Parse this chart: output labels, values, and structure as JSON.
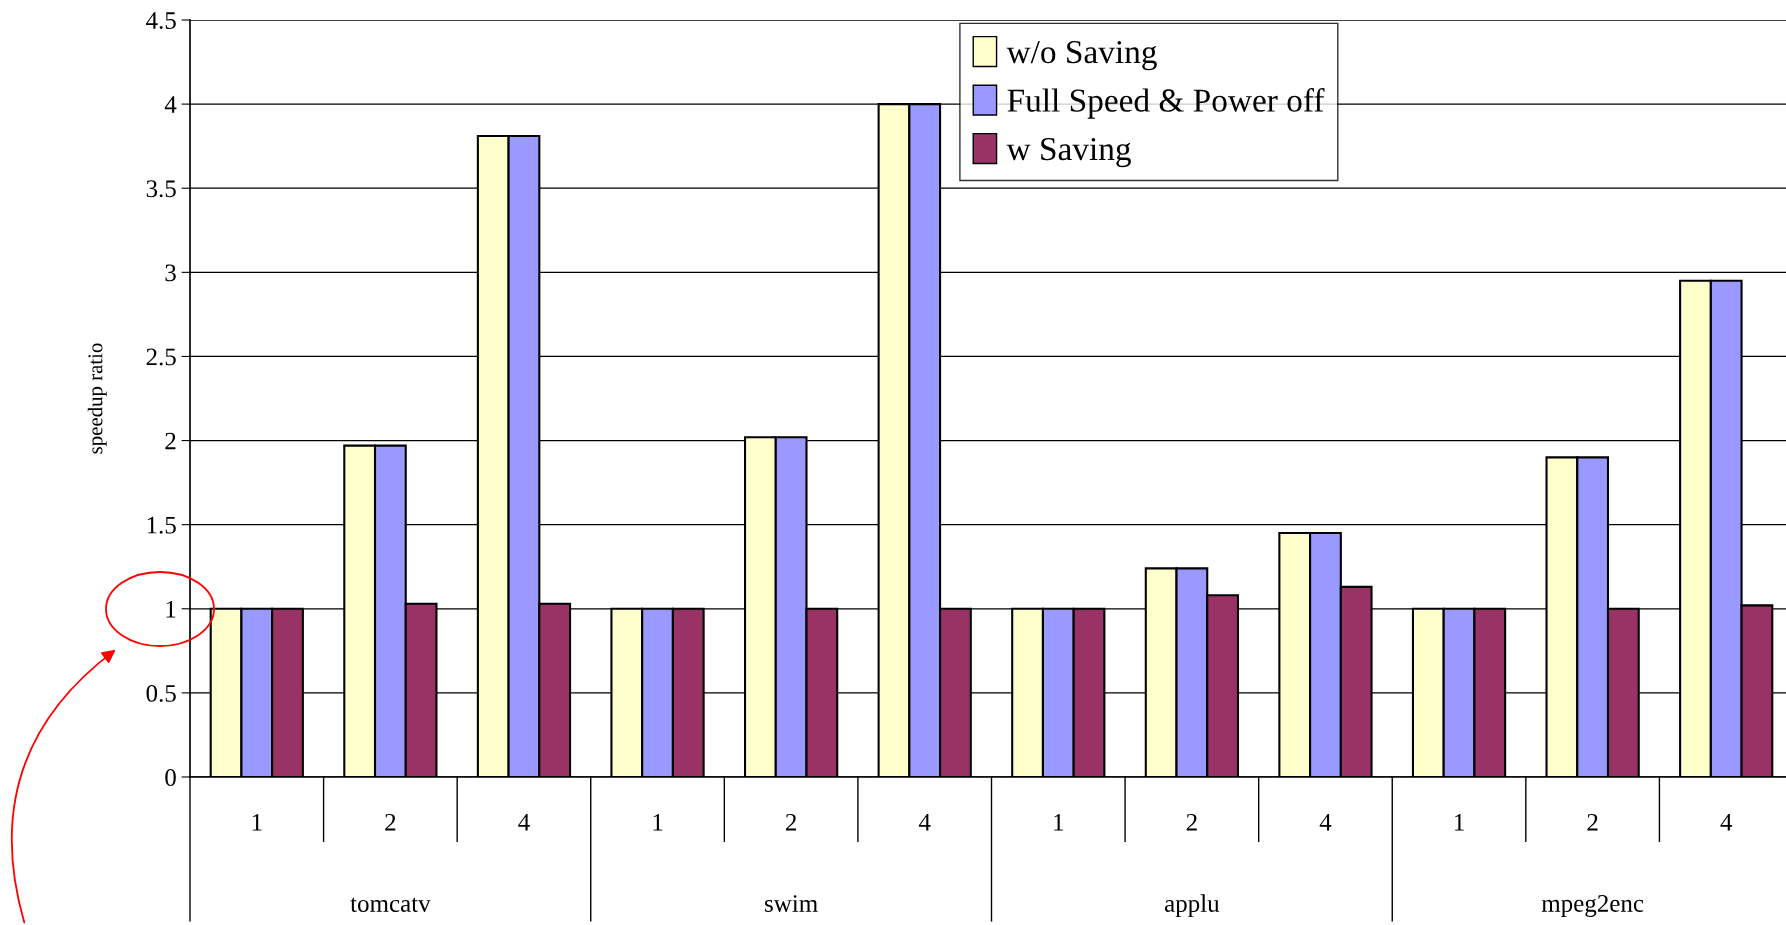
{
  "chart_data": {
    "type": "bar",
    "ylabel": "speedup ratio",
    "categories": [
      "1",
      "2",
      "4",
      "1",
      "2",
      "4",
      "1",
      "2",
      "4",
      "1",
      "2",
      "4"
    ],
    "series": [
      {
        "name": "w/o Saving",
        "color": "#ffffcc",
        "values": [
          1,
          1.97,
          3.81,
          1,
          2.02,
          4,
          1,
          1.24,
          1.45,
          1,
          1.9,
          2.95
        ]
      },
      {
        "name": "Full Speed & Power off",
        "color": "#9999ff",
        "values": [
          1,
          1.97,
          3.81,
          1,
          2.02,
          4,
          1,
          1.24,
          1.45,
          1,
          1.9,
          2.95
        ]
      },
      {
        "name": "w Saving",
        "color": "#993366",
        "values": [
          1,
          1.03,
          1.03,
          1,
          1,
          1,
          1,
          1.08,
          1.13,
          1,
          1,
          1.02
        ]
      }
    ],
    "annotations": [
      "tomcatv",
      "swim",
      "applu",
      "mpeg2enc"
    ],
    "ylim": [
      0,
      4.5
    ],
    "yticks": [
      0,
      0.5,
      1,
      1.5,
      2,
      2.5,
      3,
      3.5,
      4,
      4.5
    ],
    "grid": "y",
    "legend": "top right"
  }
}
